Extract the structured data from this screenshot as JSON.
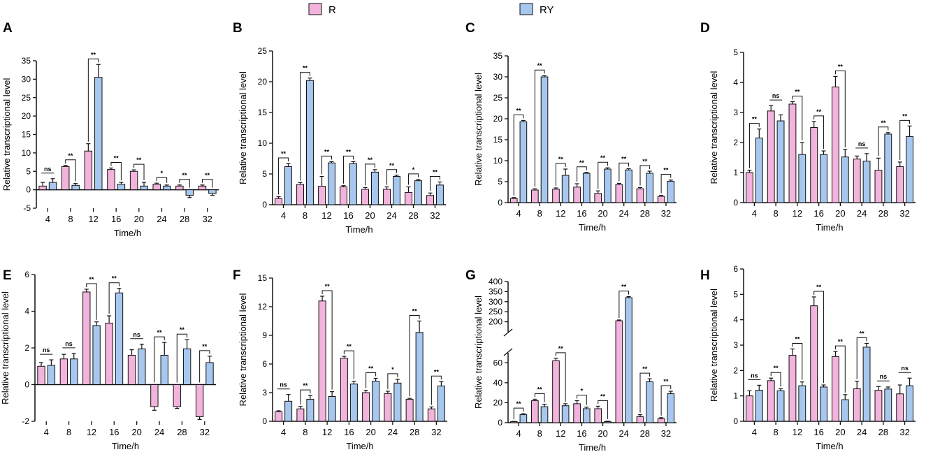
{
  "legend": [
    {
      "label": "R",
      "color": "#f2b3dc"
    },
    {
      "label": "RY",
      "color": "#a7c7ee"
    }
  ],
  "colors": {
    "R": "#f2b3dc",
    "RY": "#a7c7ee",
    "stroke": "#111111"
  },
  "chart_data": [
    {
      "type": "bar",
      "panel": "A",
      "xlabel": "Time/h",
      "ylabel": "Relative transcriptional level",
      "categories": [
        "4",
        "8",
        "12",
        "16",
        "20",
        "24",
        "28",
        "32"
      ],
      "ylim": [
        -5,
        35
      ],
      "yticks": [
        -5,
        0,
        5,
        10,
        15,
        20,
        25,
        30,
        35
      ],
      "series": [
        {
          "name": "R",
          "values": [
            1.0,
            6.3,
            10.5,
            5.5,
            5.0,
            1.5,
            1.0,
            1.0
          ],
          "errors": [
            1.0,
            0.3,
            2.0,
            0.4,
            0.4,
            0.3,
            0.3,
            0.3
          ]
        },
        {
          "name": "RY",
          "values": [
            2.0,
            1.2,
            30.5,
            1.5,
            1.0,
            1.0,
            -1.5,
            -1.0
          ],
          "errors": [
            1.0,
            0.5,
            3.5,
            0.5,
            1.0,
            0.3,
            0.6,
            0.5
          ]
        }
      ],
      "significance": [
        "ns",
        "**",
        "**",
        "**",
        "**",
        "*",
        "**",
        "**"
      ]
    },
    {
      "type": "bar",
      "panel": "B",
      "xlabel": "Time/h",
      "ylabel": "Relative transcriptional level",
      "categories": [
        "4",
        "8",
        "12",
        "16",
        "20",
        "24",
        "28",
        "32"
      ],
      "ylim": [
        0,
        25
      ],
      "yticks": [
        0,
        5,
        10,
        15,
        20,
        25
      ],
      "series": [
        {
          "name": "R",
          "values": [
            1.0,
            3.3,
            3.0,
            2.9,
            2.5,
            2.5,
            2.0,
            1.5
          ],
          "errors": [
            0.3,
            0.3,
            1.6,
            0.2,
            0.3,
            0.4,
            0.9,
            0.4
          ]
        },
        {
          "name": "RY",
          "values": [
            6.2,
            20.2,
            6.8,
            6.7,
            5.3,
            4.6,
            3.9,
            3.2
          ],
          "errors": [
            0.5,
            0.4,
            0.2,
            0.3,
            0.4,
            0.2,
            0.2,
            0.5
          ]
        }
      ],
      "significance": [
        "**",
        "**",
        "**",
        "**",
        "**",
        "**",
        "*",
        "**"
      ]
    },
    {
      "type": "bar",
      "panel": "C",
      "xlabel": "Time/h",
      "ylabel": "Relative transcriptional level",
      "categories": [
        "4",
        "8",
        "12",
        "16",
        "20",
        "24",
        "28",
        "32"
      ],
      "ylim": [
        0,
        35
      ],
      "yticks": [
        0,
        5,
        10,
        15,
        20,
        25,
        30,
        35
      ],
      "series": [
        {
          "name": "R",
          "values": [
            1.0,
            3.0,
            3.2,
            3.7,
            2.2,
            4.3,
            3.3,
            1.5
          ],
          "errors": [
            0.2,
            0.3,
            0.3,
            0.8,
            0.6,
            0.3,
            0.3,
            0.2
          ]
        },
        {
          "name": "RY",
          "values": [
            19.3,
            30.0,
            6.5,
            7.0,
            8.0,
            7.8,
            7.0,
            5.1
          ],
          "errors": [
            0.3,
            0.3,
            1.5,
            0.2,
            0.3,
            0.3,
            0.5,
            0.3
          ]
        }
      ],
      "significance": [
        "**",
        "**",
        "**",
        "**",
        "**",
        "**",
        "**",
        "**"
      ]
    },
    {
      "type": "bar",
      "panel": "D",
      "xlabel": "Time/h",
      "ylabel": "Relative transcriptional level",
      "categories": [
        "4",
        "8",
        "12",
        "16",
        "20",
        "24",
        "28",
        "32"
      ],
      "ylim": [
        0,
        5
      ],
      "yticks": [
        0,
        1,
        2,
        3,
        4,
        5
      ],
      "series": [
        {
          "name": "R",
          "values": [
            1.0,
            3.05,
            3.28,
            2.5,
            3.85,
            1.45,
            1.08,
            1.2
          ],
          "errors": [
            0.08,
            0.18,
            0.08,
            0.2,
            0.35,
            0.1,
            0.4,
            0.15
          ]
        },
        {
          "name": "RY",
          "values": [
            2.15,
            2.72,
            1.6,
            1.6,
            1.52,
            1.38,
            2.28,
            2.2
          ],
          "errors": [
            0.3,
            0.2,
            0.4,
            0.12,
            0.25,
            0.25,
            0.05,
            0.35
          ]
        }
      ],
      "significance": [
        "**",
        "ns",
        "**",
        "**",
        "**",
        "ns",
        "**",
        "**"
      ]
    },
    {
      "type": "bar",
      "panel": "E",
      "xlabel": "Time/h",
      "ylabel": "Relative transcriptional level",
      "categories": [
        "4",
        "8",
        "12",
        "16",
        "20",
        "24",
        "28",
        "32"
      ],
      "ylim": [
        -2,
        6
      ],
      "yticks": [
        -2,
        0,
        2,
        4,
        6
      ],
      "series": [
        {
          "name": "R",
          "values": [
            1.0,
            1.4,
            5.05,
            3.35,
            1.6,
            -1.2,
            -1.2,
            -1.75
          ],
          "errors": [
            0.2,
            0.25,
            0.15,
            0.4,
            0.3,
            0.2,
            0.1,
            0.15
          ]
        },
        {
          "name": "RY",
          "values": [
            1.05,
            1.4,
            3.22,
            5.0,
            1.95,
            1.6,
            1.95,
            1.2
          ],
          "errors": [
            0.3,
            0.3,
            0.2,
            0.25,
            0.25,
            0.7,
            0.5,
            0.35
          ]
        }
      ],
      "significance": [
        "ns",
        "ns",
        "**",
        "**",
        "ns",
        "**",
        "**",
        "**"
      ]
    },
    {
      "type": "bar",
      "panel": "F",
      "xlabel": "Time/h",
      "ylabel": "Relative transcriptional level",
      "categories": [
        "4",
        "8",
        "12",
        "16",
        "20",
        "24",
        "28",
        "32"
      ],
      "ylim": [
        0,
        15
      ],
      "yticks": [
        0,
        3,
        6,
        9,
        12,
        15
      ],
      "series": [
        {
          "name": "R",
          "values": [
            1.0,
            1.3,
            12.6,
            6.6,
            3.0,
            2.9,
            2.3,
            1.3
          ],
          "errors": [
            0.1,
            0.25,
            0.5,
            0.2,
            0.25,
            0.25,
            0.1,
            0.2
          ]
        },
        {
          "name": "RY",
          "values": [
            2.1,
            2.3,
            2.6,
            3.9,
            4.2,
            4.0,
            9.3,
            3.7
          ],
          "errors": [
            0.7,
            0.4,
            0.5,
            0.3,
            0.3,
            0.4,
            1.2,
            0.45
          ]
        }
      ],
      "significance": [
        "ns",
        "**",
        "**",
        "**",
        "**",
        "*",
        "**",
        "**"
      ]
    },
    {
      "type": "bar",
      "panel": "G",
      "xlabel": "Time/h",
      "ylabel": "Relative transcriptional level",
      "categories": [
        "4",
        "8",
        "12",
        "16",
        "20",
        "24",
        "28",
        "32"
      ],
      "ylim": [
        0,
        400
      ],
      "broken_axis": [
        70,
        150
      ],
      "yticks": [
        0,
        20,
        40,
        60,
        200,
        250,
        300,
        350,
        400
      ],
      "series": [
        {
          "name": "R",
          "values": [
            1.0,
            22.0,
            62.0,
            19.0,
            14.0,
            205.0,
            6.0,
            4.0
          ],
          "errors": [
            0.3,
            1.5,
            2.5,
            3.0,
            2.5,
            4.0,
            2.0,
            1.0
          ]
        },
        {
          "name": "RY",
          "values": [
            8.0,
            16.0,
            17.0,
            14.0,
            1.0,
            320.0,
            41.0,
            29.0
          ],
          "errors": [
            1.0,
            2.5,
            2.0,
            1.5,
            0.5,
            5.0,
            3.0,
            2.5
          ]
        }
      ],
      "significance": [
        "**",
        "**",
        "**",
        "*",
        "**",
        "**",
        "**",
        "**"
      ]
    },
    {
      "type": "bar",
      "panel": "H",
      "xlabel": "Time/h",
      "ylabel": "Relative transcriptional level",
      "categories": [
        "4",
        "8",
        "12",
        "16",
        "20",
        "24",
        "28",
        "32"
      ],
      "ylim": [
        0,
        6
      ],
      "yticks": [
        0,
        1,
        2,
        3,
        4,
        5,
        6
      ],
      "series": [
        {
          "name": "R",
          "values": [
            1.0,
            1.6,
            2.6,
            4.55,
            2.55,
            1.28,
            1.22,
            1.08
          ],
          "errors": [
            0.2,
            0.1,
            0.25,
            0.35,
            0.2,
            0.3,
            0.15,
            0.35
          ]
        },
        {
          "name": "RY",
          "values": [
            1.22,
            1.2,
            1.4,
            1.35,
            0.85,
            2.92,
            1.27,
            1.4
          ],
          "errors": [
            0.2,
            0.08,
            0.15,
            0.08,
            0.2,
            0.15,
            0.08,
            0.3
          ]
        }
      ],
      "significance": [
        "ns",
        "**",
        "**",
        "**",
        "**",
        "**",
        "ns",
        "ns"
      ]
    }
  ]
}
